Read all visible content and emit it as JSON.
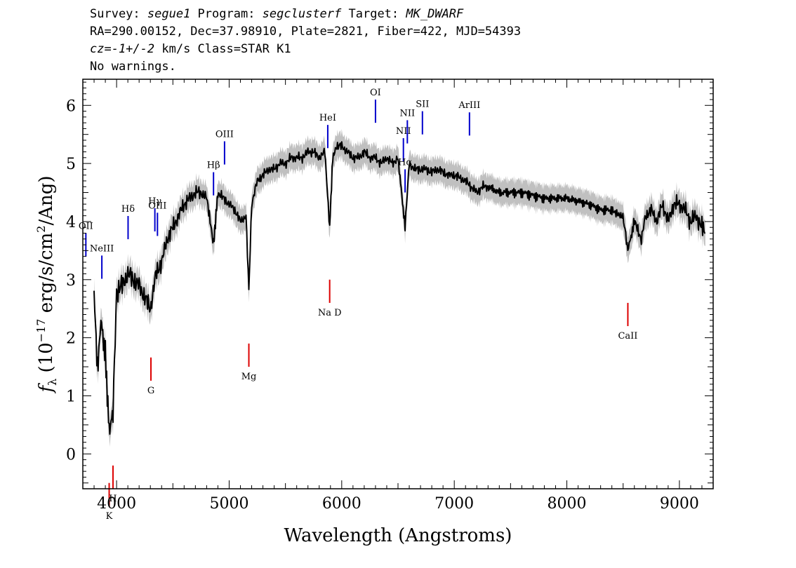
{
  "header": {
    "line1": {
      "survey_label": "Survey: ",
      "survey": "segue1",
      "program_label": " Program: ",
      "program": "segclusterf",
      "target_label": " Target: ",
      "target": "MK_DWARF"
    },
    "line2": "RA=290.00152, Dec=37.98910, Plate=2821, Fiber=422, MJD=54393",
    "line3": {
      "cz": "cz=-1+/-2",
      "rest": " km/s Class=STAR K1"
    },
    "line4": "No warnings."
  },
  "chart_data": {
    "type": "line",
    "xlabel": "Wavelength (Angstroms)",
    "ylabel": "f_λ (10^-17 erg/s/cm^2/Ang)",
    "xlim": [
      3700,
      9300
    ],
    "ylim": [
      -0.6,
      6.45
    ],
    "x_ticks": [
      4000,
      5000,
      6000,
      7000,
      8000,
      9000
    ],
    "y_ticks": [
      0,
      1,
      2,
      3,
      4,
      5,
      6
    ],
    "grid": false,
    "series": [
      {
        "color": "#000000",
        "x": [
          3800,
          3830,
          3860,
          3900,
          3934,
          3968,
          4000,
          4050,
          4100,
          4150,
          4200,
          4250,
          4300,
          4350,
          4400,
          4450,
          4500,
          4550,
          4600,
          4650,
          4700,
          4750,
          4800,
          4861,
          4900,
          4950,
          5000,
          5050,
          5100,
          5150,
          5175,
          5200,
          5250,
          5300,
          5350,
          5400,
          5450,
          5500,
          5550,
          5600,
          5650,
          5700,
          5750,
          5800,
          5850,
          5893,
          5920,
          5950,
          6000,
          6050,
          6100,
          6150,
          6200,
          6250,
          6300,
          6350,
          6400,
          6450,
          6500,
          6563,
          6600,
          6650,
          6700,
          6750,
          6800,
          6850,
          6900,
          6950,
          7000,
          7050,
          7100,
          7150,
          7200,
          7250,
          7300,
          7400,
          7500,
          7600,
          7700,
          7800,
          7900,
          8000,
          8100,
          8200,
          8300,
          8400,
          8498,
          8542,
          8600,
          8662,
          8700,
          8750,
          8800,
          8850,
          8900,
          8950,
          9000,
          9050,
          9100,
          9150,
          9200,
          9230
        ],
        "y": [
          2.8,
          1.5,
          2.3,
          1.7,
          0.4,
          0.7,
          2.8,
          2.9,
          3.1,
          3.0,
          2.9,
          2.7,
          2.5,
          3.1,
          3.3,
          3.7,
          3.9,
          4.1,
          4.3,
          4.4,
          4.5,
          4.5,
          4.4,
          3.6,
          4.5,
          4.4,
          4.3,
          4.2,
          4.0,
          4.1,
          2.8,
          4.3,
          4.7,
          4.8,
          4.9,
          4.9,
          5.0,
          5.0,
          5.1,
          5.1,
          5.1,
          5.2,
          5.2,
          5.1,
          5.2,
          3.9,
          5.1,
          5.3,
          5.3,
          5.2,
          5.1,
          5.1,
          5.2,
          5.1,
          5.1,
          5.0,
          5.1,
          5.0,
          5.1,
          3.9,
          5.0,
          4.9,
          4.9,
          4.9,
          4.85,
          4.9,
          4.85,
          4.8,
          4.8,
          4.75,
          4.7,
          4.6,
          4.5,
          4.6,
          4.6,
          4.5,
          4.5,
          4.5,
          4.45,
          4.4,
          4.4,
          4.4,
          4.35,
          4.3,
          4.2,
          4.2,
          4.1,
          3.5,
          4.0,
          3.7,
          4.1,
          4.2,
          4.0,
          4.3,
          4.0,
          4.3,
          4.3,
          4.2,
          4.0,
          4.1,
          3.9,
          3.8
        ]
      }
    ],
    "emission_lines": [
      {
        "label": "OII",
        "wavelength": 3727
      },
      {
        "label": "NeIII",
        "wavelength": 3869
      },
      {
        "label": "Hδ",
        "wavelength": 4102
      },
      {
        "label": "Hγ",
        "wavelength": 4340
      },
      {
        "label": "OIII",
        "wavelength": 4363
      },
      {
        "label": "Hβ",
        "wavelength": 4861
      },
      {
        "label": "OIII",
        "wavelength": 4959
      },
      {
        "label": "HeI",
        "wavelength": 5876
      },
      {
        "label": "OI",
        "wavelength": 6300
      },
      {
        "label": "NII",
        "wavelength": 6548
      },
      {
        "label": "Hα",
        "wavelength": 6563
      },
      {
        "label": "NII",
        "wavelength": 6583
      },
      {
        "label": "SII",
        "wavelength": 6717
      },
      {
        "label": "ArIII",
        "wavelength": 7135
      }
    ],
    "absorption_lines": [
      {
        "label": "K",
        "wavelength": 3934
      },
      {
        "label": "H",
        "wavelength": 3968
      },
      {
        "label": "G",
        "wavelength": 4305
      },
      {
        "label": "Mg",
        "wavelength": 5175
      },
      {
        "label": "Na D",
        "wavelength": 5893
      },
      {
        "label": "CaII",
        "wavelength": 8542
      }
    ],
    "colors": {
      "spectrum": "#000000",
      "error_band": "#c0c0c0",
      "emission_marker": "#0000cc",
      "absorption_marker": "#dd0000",
      "stem_marker": "#000000"
    }
  }
}
